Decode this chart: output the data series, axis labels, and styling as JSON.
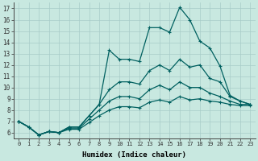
{
  "xlabel": "Humidex (Indice chaleur)",
  "ylabel": "",
  "bg_color": "#c8e8e0",
  "line_color": "#006060",
  "grid_color": "#a8ccc8",
  "ylim": [
    5.5,
    17.5
  ],
  "xlim": [
    -0.5,
    23.5
  ],
  "yticks": [
    6,
    7,
    8,
    9,
    10,
    11,
    12,
    13,
    14,
    15,
    16,
    17
  ],
  "xticks": [
    0,
    1,
    2,
    3,
    4,
    5,
    6,
    7,
    8,
    9,
    10,
    11,
    12,
    13,
    14,
    15,
    16,
    17,
    18,
    19,
    20,
    21,
    22,
    23
  ],
  "series": [
    [
      7.0,
      6.5,
      5.8,
      6.1,
      6.0,
      6.5,
      6.5,
      7.5,
      8.5,
      13.3,
      12.5,
      12.5,
      12.3,
      15.3,
      15.3,
      14.9,
      17.1,
      16.0,
      14.1,
      13.5,
      11.9,
      9.3,
      8.8,
      8.5
    ],
    [
      7.0,
      6.5,
      5.8,
      6.1,
      6.0,
      6.5,
      6.5,
      7.5,
      8.5,
      9.8,
      10.5,
      10.5,
      10.3,
      11.5,
      12.0,
      11.5,
      12.5,
      11.8,
      12.0,
      10.8,
      10.5,
      9.2,
      8.8,
      8.5
    ],
    [
      7.0,
      6.5,
      5.8,
      6.1,
      6.0,
      6.4,
      6.4,
      7.2,
      8.0,
      8.8,
      9.2,
      9.2,
      9.0,
      9.8,
      10.2,
      9.8,
      10.5,
      10.0,
      10.0,
      9.5,
      9.2,
      8.8,
      8.5,
      8.5
    ],
    [
      7.0,
      6.5,
      5.8,
      6.1,
      6.0,
      6.3,
      6.3,
      6.9,
      7.5,
      8.0,
      8.3,
      8.3,
      8.2,
      8.7,
      8.9,
      8.7,
      9.2,
      8.9,
      9.0,
      8.8,
      8.7,
      8.5,
      8.4,
      8.4
    ]
  ]
}
